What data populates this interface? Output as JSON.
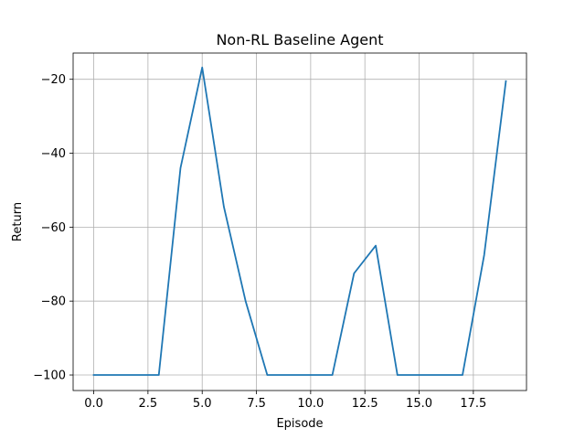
{
  "chart_data": {
    "type": "line",
    "title": "Non-RL Baseline Agent",
    "xlabel": "Episode",
    "ylabel": "Return",
    "xlim": [
      -0.95,
      19.95
    ],
    "ylim": [
      -104.2,
      -12.9
    ],
    "xticks": [
      0.0,
      2.5,
      5.0,
      7.5,
      10.0,
      12.5,
      15.0,
      17.5
    ],
    "xtick_labels": [
      "0.0",
      "2.5",
      "5.0",
      "7.5",
      "10.0",
      "12.5",
      "15.0",
      "17.5"
    ],
    "yticks": [
      -100,
      -80,
      -60,
      -40,
      -20
    ],
    "ytick_labels": [
      "−100",
      "−80",
      "−60",
      "−40",
      "−20"
    ],
    "grid": true,
    "series": [
      {
        "color": "#1f77b4",
        "x": [
          0,
          1,
          2,
          3,
          4,
          5,
          6,
          7,
          8,
          9,
          10,
          11,
          12,
          13,
          14,
          15,
          16,
          17,
          18,
          19
        ],
        "y": [
          -100,
          -100,
          -100,
          -100,
          -44,
          -16.8,
          -54.5,
          -80,
          -100,
          -100,
          -100,
          -100,
          -72.5,
          -65,
          -100,
          -100,
          -100,
          -100,
          -67.5,
          -20.5
        ]
      }
    ]
  }
}
